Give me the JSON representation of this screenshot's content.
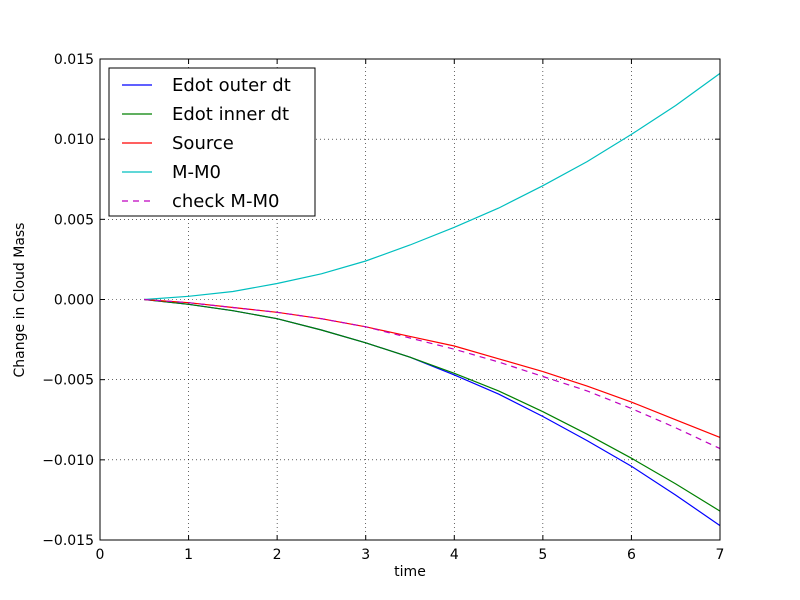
{
  "chart_data": {
    "type": "line",
    "title": "",
    "xlabel": "time",
    "ylabel": "Change in Cloud Mass",
    "xlim": [
      0,
      7
    ],
    "ylim": [
      -0.015,
      0.015
    ],
    "x_ticks": [
      0,
      1,
      2,
      3,
      4,
      5,
      6,
      7
    ],
    "x_tick_labels": [
      "0",
      "1",
      "2",
      "3",
      "4",
      "5",
      "6",
      "7"
    ],
    "y_ticks": [
      -0.015,
      -0.01,
      -0.005,
      0.0,
      0.005,
      0.01,
      0.015
    ],
    "y_tick_labels": [
      "−0.015",
      "−0.010",
      "−0.005",
      "0.000",
      "0.005",
      "0.010",
      "0.015"
    ],
    "grid": true,
    "legend_position": "upper-left",
    "series": [
      {
        "name": "Edot outer dt",
        "color": "#0000ff",
        "dashed": false,
        "x": [
          0.5,
          1.0,
          1.5,
          2.0,
          2.5,
          3.0,
          3.5,
          4.0,
          4.5,
          5.0,
          5.5,
          6.0,
          6.5,
          7.0
        ],
        "y": [
          0.0,
          -0.0003,
          -0.0007,
          -0.0012,
          -0.0019,
          -0.0027,
          -0.0036,
          -0.0047,
          -0.0059,
          -0.0073,
          -0.0088,
          -0.0104,
          -0.0122,
          -0.0141
        ]
      },
      {
        "name": "Edot inner dt",
        "color": "#008000",
        "dashed": false,
        "x": [
          0.5,
          1.0,
          1.5,
          2.0,
          2.5,
          3.0,
          3.5,
          4.0,
          4.5,
          5.0,
          5.5,
          6.0,
          6.5,
          7.0
        ],
        "y": [
          0.0,
          -0.0003,
          -0.0007,
          -0.0012,
          -0.0019,
          -0.0027,
          -0.0036,
          -0.0046,
          -0.0057,
          -0.007,
          -0.0084,
          -0.0099,
          -0.0115,
          -0.0132
        ]
      },
      {
        "name": "Source",
        "color": "#ff0000",
        "dashed": false,
        "x": [
          0.5,
          1.0,
          1.5,
          2.0,
          2.5,
          3.0,
          3.5,
          4.0,
          4.5,
          5.0,
          5.5,
          6.0,
          6.5,
          7.0
        ],
        "y": [
          0.0,
          -0.0002,
          -0.0005,
          -0.0008,
          -0.0012,
          -0.0017,
          -0.0023,
          -0.0029,
          -0.0037,
          -0.0045,
          -0.0054,
          -0.0064,
          -0.0075,
          -0.0086
        ]
      },
      {
        "name": "M-M0",
        "color": "#00bfbf",
        "dashed": false,
        "x": [
          0.5,
          1.0,
          1.5,
          2.0,
          2.5,
          3.0,
          3.5,
          4.0,
          4.5,
          5.0,
          5.5,
          6.0,
          6.5,
          7.0
        ],
        "y": [
          0.0,
          0.0002,
          0.0005,
          0.001,
          0.0016,
          0.0024,
          0.0034,
          0.0045,
          0.0057,
          0.0071,
          0.0086,
          0.0103,
          0.0121,
          0.0141
        ]
      },
      {
        "name": "check M-M0",
        "color": "#bf00bf",
        "dashed": true,
        "x": [
          0.5,
          1.0,
          1.5,
          2.0,
          2.5,
          3.0,
          3.5,
          4.0,
          4.5,
          5.0,
          5.5,
          6.0,
          6.5,
          7.0
        ],
        "y": [
          0.0,
          -0.0002,
          -0.0005,
          -0.0008,
          -0.0012,
          -0.0017,
          -0.0024,
          -0.0031,
          -0.0039,
          -0.0048,
          -0.0057,
          -0.0068,
          -0.008,
          -0.0093
        ]
      }
    ]
  }
}
